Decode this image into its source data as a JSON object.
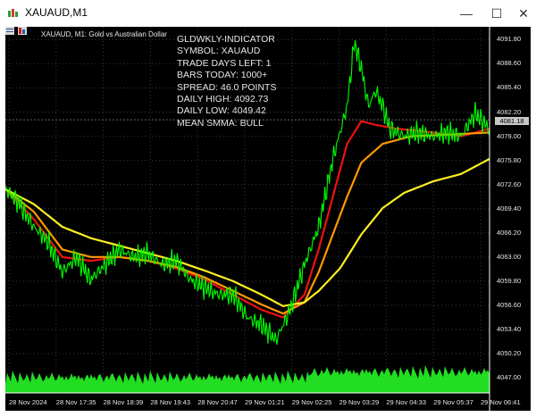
{
  "window": {
    "title": "XAUAUD,M1",
    "controls": {
      "minimize": "—",
      "maximize": "☐",
      "close": "✕"
    }
  },
  "chart": {
    "symbol_label": "XAUAUD, M1:  Gold vs Australian Dollar",
    "indicator_lines": [
      "GLDWKLY-INDICATOR",
      "SYMBOL: XAUAUD",
      "TRADE DAYS LEFT: 1",
      "BARS TODAY: 1000+",
      "SPREAD: 46.0 POINTS",
      "DAILY HIGH: 4092.73",
      "DAILY LOW: 4049.42",
      "MEAN SMMA: BULL"
    ],
    "current_price": "4081.18",
    "colors": {
      "background": "#000000",
      "grid": "#3a3a3a",
      "price": "#00ff00",
      "volume": "#22dd22",
      "smma_fast": "#ee1111",
      "smma_mid": "#ff9900",
      "smma_slow": "#ffee22"
    }
  },
  "chart_data": {
    "type": "line",
    "x_labels": [
      "28 Nov 2024",
      "28 Nov 17:35",
      "28 Nov 18:39",
      "28 Nov 19:43",
      "28 Nov 20:47",
      "29 Nov 01:21",
      "29 Nov 02:25",
      "29 Nov 03:29",
      "29 Nov 04:33",
      "29 Nov 05:37",
      "29 Nov 06:41"
    ],
    "y_ticks": [
      "4091.80",
      "4088.60",
      "4085.40",
      "4082.20",
      "4079.00",
      "4075.80",
      "4072.60",
      "4069.40",
      "4066.20",
      "4063.00",
      "4059.80",
      "4056.60",
      "4053.40",
      "4050.20",
      "4047.00"
    ],
    "ylim": [
      4045.0,
      4093.5
    ],
    "price_points": [
      [
        0,
        4072
      ],
      [
        4,
        4070
      ],
      [
        8,
        4067
      ],
      [
        12,
        4065
      ],
      [
        16,
        4061
      ],
      [
        20,
        4063
      ],
      [
        24,
        4060
      ],
      [
        28,
        4062
      ],
      [
        32,
        4064
      ],
      [
        36,
        4063
      ],
      [
        40,
        4063.5
      ],
      [
        44,
        4062
      ],
      [
        48,
        4062.5
      ],
      [
        52,
        4060
      ],
      [
        56,
        4059
      ],
      [
        60,
        4058
      ],
      [
        64,
        4058
      ],
      [
        68,
        4055
      ],
      [
        72,
        4054
      ],
      [
        76,
        4052
      ],
      [
        80,
        4056
      ],
      [
        84,
        4062
      ],
      [
        88,
        4067
      ],
      [
        92,
        4076
      ],
      [
        96,
        4083
      ],
      [
        98,
        4091.5
      ],
      [
        100,
        4088
      ],
      [
        102,
        4083
      ],
      [
        104,
        4085
      ],
      [
        106,
        4083
      ],
      [
        108,
        4080
      ],
      [
        112,
        4079
      ],
      [
        116,
        4079.5
      ],
      [
        120,
        4079
      ],
      [
        124,
        4079.5
      ],
      [
        128,
        4079
      ],
      [
        132,
        4082
      ],
      [
        136,
        4080
      ]
    ],
    "series": [
      {
        "color": "red",
        "points": [
          [
            0,
            4072
          ],
          [
            8,
            4068
          ],
          [
            16,
            4063
          ],
          [
            24,
            4062.5
          ],
          [
            32,
            4063
          ],
          [
            40,
            4062.5
          ],
          [
            48,
            4061.5
          ],
          [
            56,
            4060
          ],
          [
            64,
            4058
          ],
          [
            72,
            4056
          ],
          [
            78,
            4055
          ],
          [
            84,
            4058
          ],
          [
            88,
            4064
          ],
          [
            92,
            4071
          ],
          [
            96,
            4078
          ],
          [
            100,
            4081
          ],
          [
            104,
            4080.5
          ],
          [
            110,
            4080
          ],
          [
            120,
            4079.5
          ],
          [
            128,
            4079
          ],
          [
            136,
            4080
          ]
        ]
      },
      {
        "color": "orange",
        "points": [
          [
            0,
            4072
          ],
          [
            8,
            4069
          ],
          [
            16,
            4064
          ],
          [
            24,
            4063
          ],
          [
            32,
            4063
          ],
          [
            40,
            4062.5
          ],
          [
            48,
            4061.7
          ],
          [
            56,
            4060.3
          ],
          [
            64,
            4058.5
          ],
          [
            72,
            4056.7
          ],
          [
            78,
            4055.5
          ],
          [
            84,
            4057
          ],
          [
            88,
            4061
          ],
          [
            92,
            4066
          ],
          [
            96,
            4071
          ],
          [
            100,
            4075.5
          ],
          [
            106,
            4078
          ],
          [
            114,
            4079
          ],
          [
            124,
            4079.2
          ],
          [
            136,
            4079.5
          ]
        ]
      },
      {
        "color": "yellow",
        "points": [
          [
            0,
            4072
          ],
          [
            8,
            4070
          ],
          [
            16,
            4067
          ],
          [
            24,
            4065.5
          ],
          [
            32,
            4064.5
          ],
          [
            40,
            4063.5
          ],
          [
            48,
            4062.5
          ],
          [
            56,
            4061.2
          ],
          [
            64,
            4059.8
          ],
          [
            72,
            4058
          ],
          [
            78,
            4056.5
          ],
          [
            84,
            4057
          ],
          [
            88,
            4058.5
          ],
          [
            94,
            4061.5
          ],
          [
            100,
            4066
          ],
          [
            106,
            4069.5
          ],
          [
            112,
            4071.5
          ],
          [
            120,
            4073
          ],
          [
            128,
            4074
          ],
          [
            136,
            4076
          ]
        ]
      }
    ],
    "grid": true
  }
}
